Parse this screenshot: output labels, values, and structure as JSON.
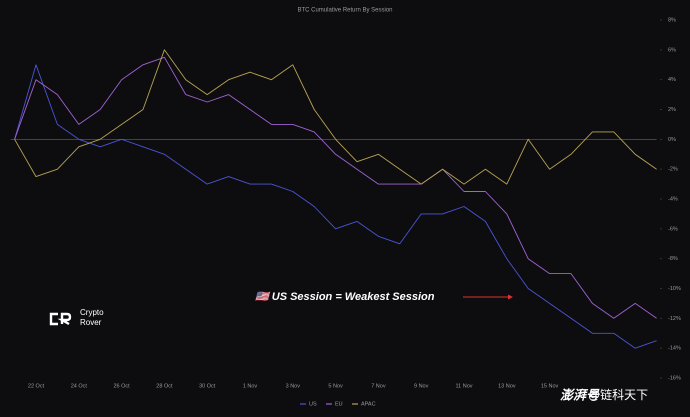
{
  "chart_data": {
    "type": "line",
    "title": "BTC Cumulative Return By Session",
    "categories": [
      null,
      "22 Oct",
      null,
      "24 Oct",
      null,
      "26 Oct",
      null,
      "28 Oct",
      null,
      "30 Oct",
      null,
      "1 Nov",
      null,
      "3 Nov",
      null,
      "5 Nov",
      null,
      "7 Nov",
      null,
      "9 Nov",
      null,
      "11 Nov",
      null,
      "13 Nov",
      null,
      "15 Nov",
      null,
      null,
      null,
      null,
      null
    ],
    "series": [
      {
        "name": "US",
        "color": "#4b55d6",
        "values": [
          0,
          5,
          1,
          0,
          -0.5,
          0,
          -0.5,
          -1,
          -2,
          -3,
          -2.5,
          -3,
          -3,
          -3.5,
          -4.5,
          -6,
          -5.5,
          -6.5,
          -7,
          -5,
          -5,
          -4.5,
          -5.5,
          -8,
          -10,
          -11,
          -12,
          -13,
          -13,
          -14,
          -13.5
        ]
      },
      {
        "name": "EU",
        "color": "#a262d4",
        "values": [
          0,
          4,
          3,
          1,
          2,
          4,
          5,
          5.5,
          3,
          2.5,
          3,
          2,
          1,
          1,
          0.5,
          -1,
          -2,
          -3,
          -3,
          -3,
          -2,
          -3.5,
          -3.5,
          -5,
          -8,
          -9,
          -9,
          -11,
          -12,
          -11,
          -12
        ]
      },
      {
        "name": "APAC",
        "color": "#b9a254",
        "values": [
          0,
          -2.5,
          -2,
          -0.5,
          0,
          1,
          2,
          6,
          4,
          3,
          4,
          4.5,
          4,
          5,
          2,
          0,
          -1.5,
          -1,
          -2,
          -3,
          -2,
          -3,
          -2,
          -3,
          0,
          -2,
          -1,
          0.5,
          0.5,
          -1,
          -2
        ]
      }
    ],
    "ylim": [
      -16,
      8
    ],
    "yticks": [
      {
        "value": 8,
        "label": "8%"
      },
      {
        "value": 6,
        "label": "6%"
      },
      {
        "value": 4,
        "label": "4%"
      },
      {
        "value": 2,
        "label": "2%"
      },
      {
        "value": 0,
        "label": "0%"
      },
      {
        "value": -2,
        "label": "-2%"
      },
      {
        "value": -4,
        "label": "-4%"
      },
      {
        "value": -6,
        "label": "-6%"
      },
      {
        "value": -8,
        "label": "-8%"
      },
      {
        "value": -10,
        "label": "-10%"
      },
      {
        "value": -12,
        "label": "-12%"
      },
      {
        "value": -14,
        "label": "-14%"
      },
      {
        "value": -16,
        "label": "-16%"
      }
    ],
    "zero_line": true,
    "annotation": "🇺🇸 US Session = Weakest Session",
    "logo_text": [
      "Crypto",
      "Rover"
    ],
    "watermark": [
      "澎湃号",
      "@链科天下"
    ]
  }
}
